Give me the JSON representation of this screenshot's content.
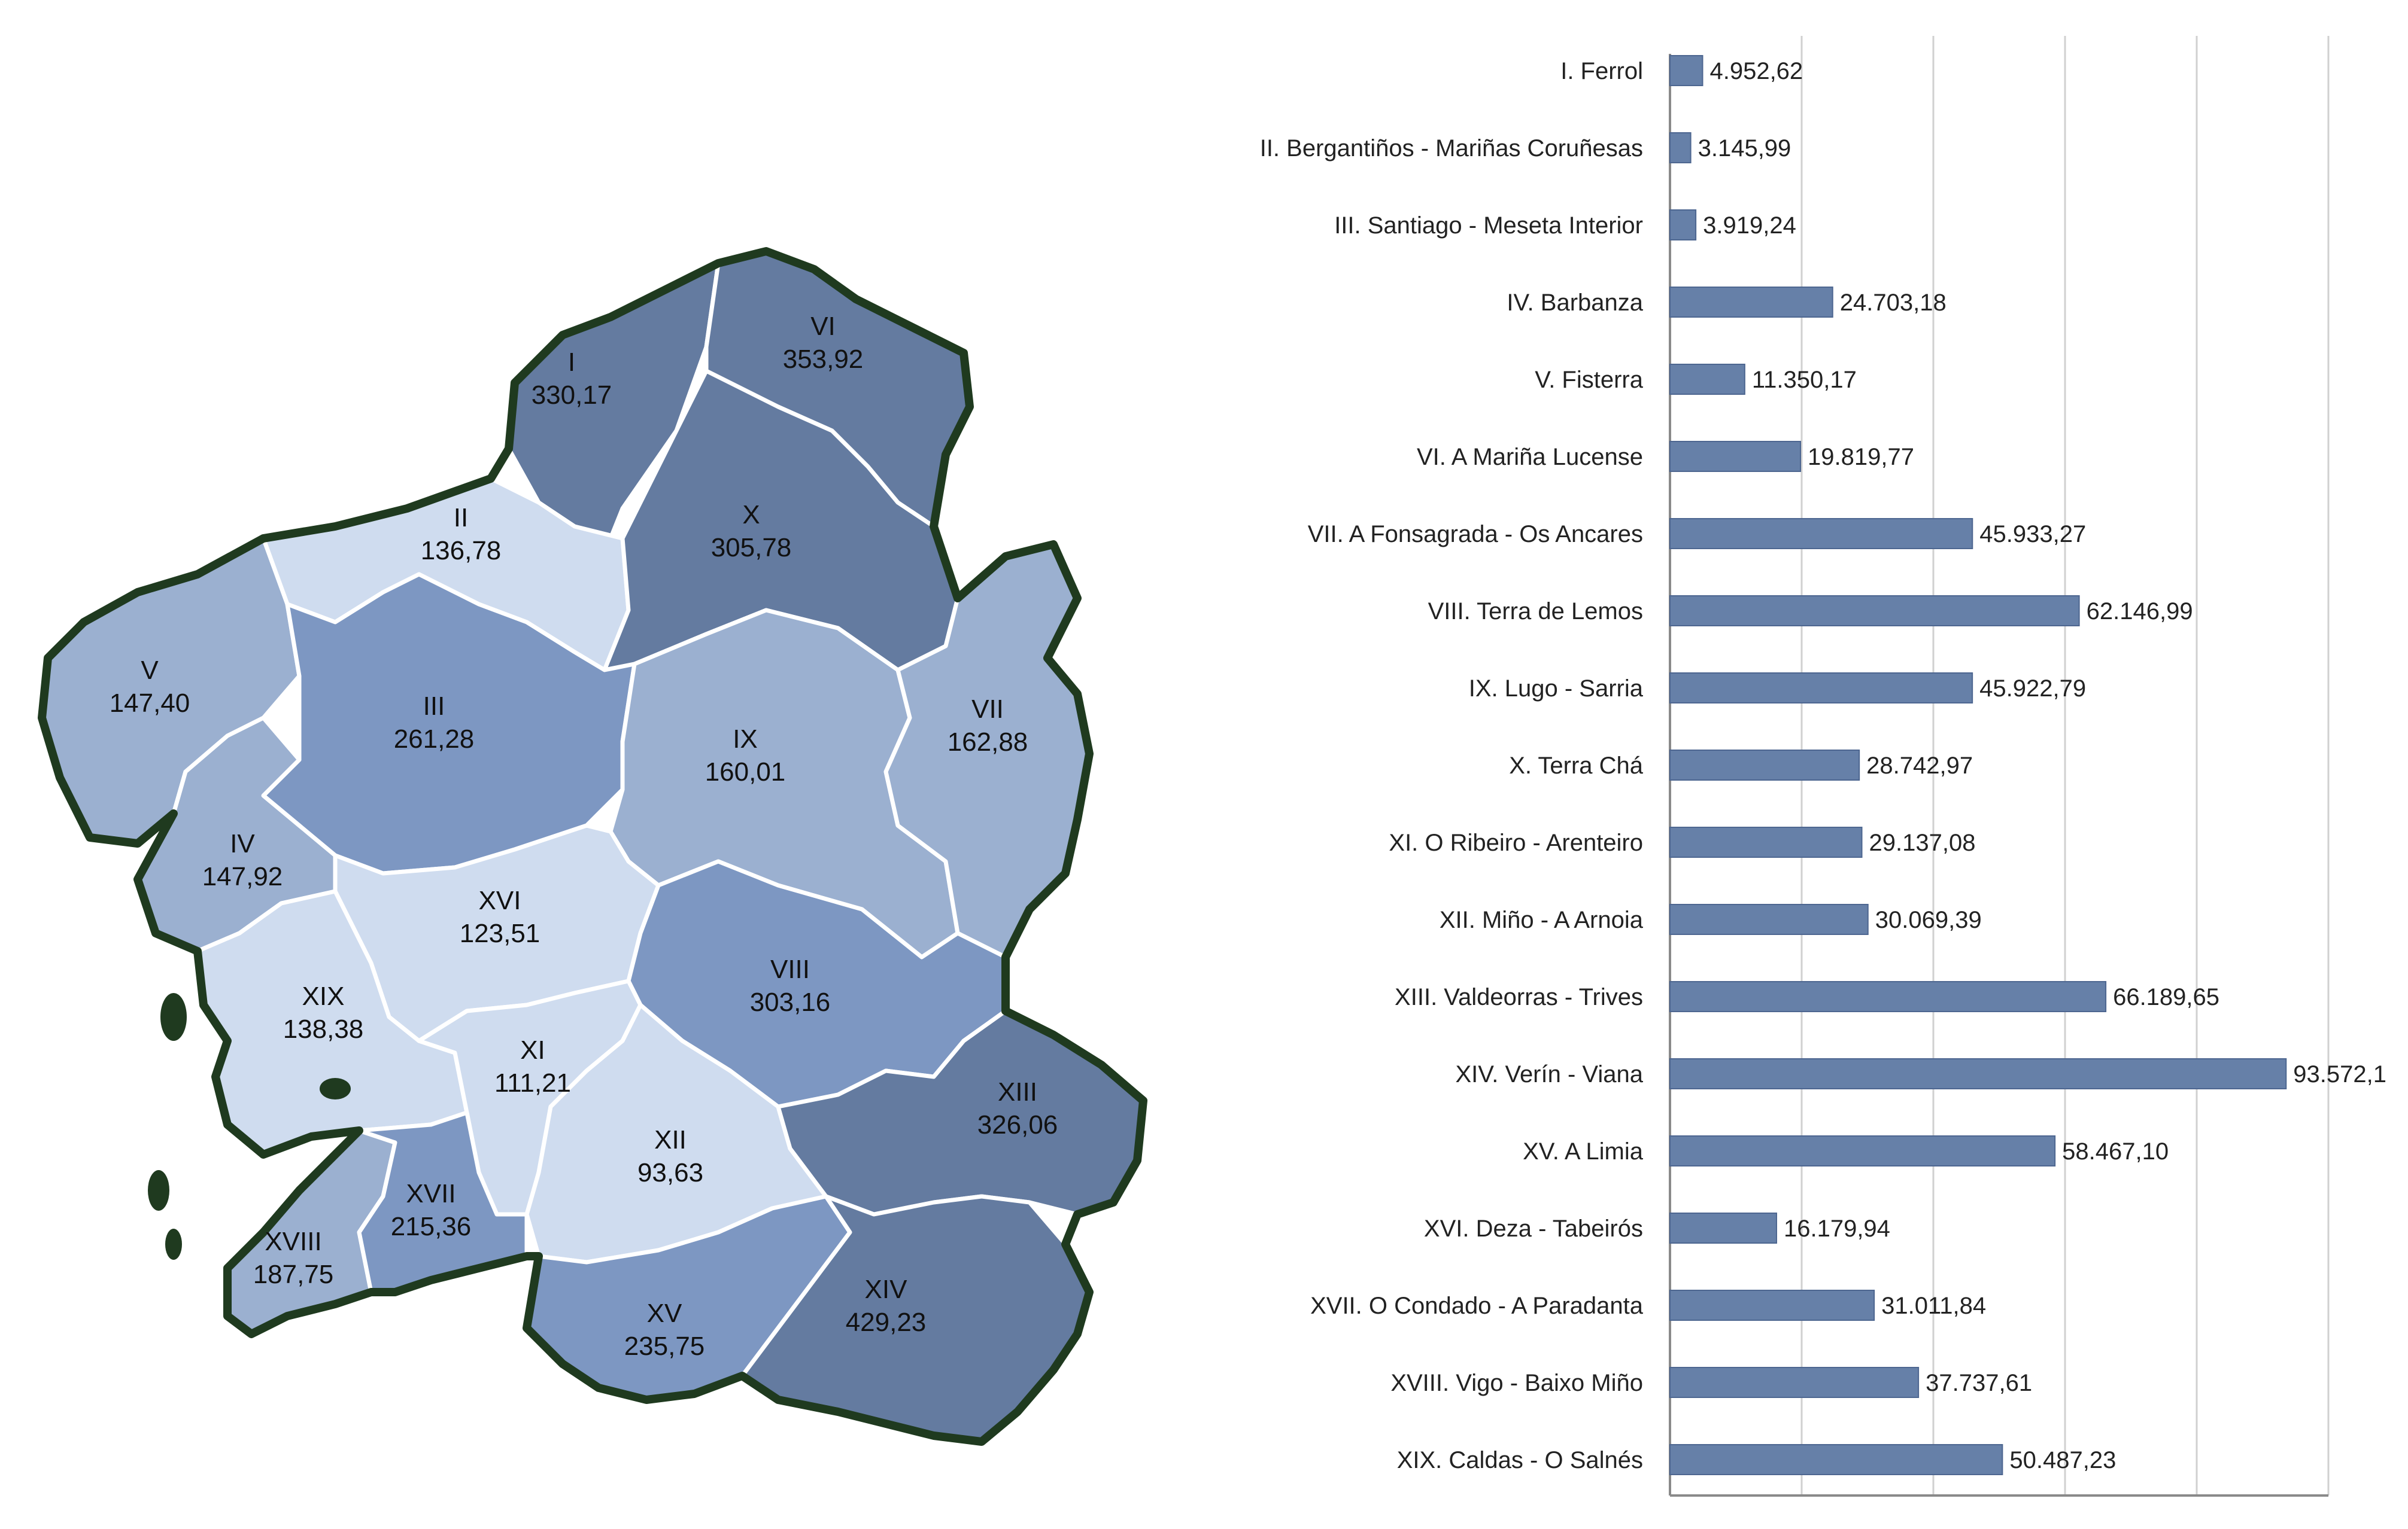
{
  "map": {
    "colors": {
      "dark": "#647ba0",
      "medium": "#7d97c2",
      "light": "#9bb0d0",
      "pale": "#cfdcef",
      "border": "#1f3a1f"
    },
    "regions": [
      {
        "id": "I",
        "value": "330,17",
        "shade": "dark"
      },
      {
        "id": "II",
        "value": "136,78",
        "shade": "pale"
      },
      {
        "id": "III",
        "value": "261,28",
        "shade": "medium"
      },
      {
        "id": "IV",
        "value": "147,92",
        "shade": "light"
      },
      {
        "id": "V",
        "value": "147,40",
        "shade": "light"
      },
      {
        "id": "VI",
        "value": "353,92",
        "shade": "dark"
      },
      {
        "id": "VII",
        "value": "162,88",
        "shade": "light"
      },
      {
        "id": "VIII",
        "value": "303,16",
        "shade": "medium"
      },
      {
        "id": "IX",
        "value": "160,01",
        "shade": "light"
      },
      {
        "id": "X",
        "value": "305,78",
        "shade": "dark"
      },
      {
        "id": "XI",
        "value": "111,21",
        "shade": "pale"
      },
      {
        "id": "XII",
        "value": "93,63",
        "shade": "pale"
      },
      {
        "id": "XIII",
        "value": "326,06",
        "shade": "dark"
      },
      {
        "id": "XIV",
        "value": "429,23",
        "shade": "dark"
      },
      {
        "id": "XV",
        "value": "235,75",
        "shade": "medium"
      },
      {
        "id": "XVI",
        "value": "123,51",
        "shade": "pale"
      },
      {
        "id": "XVII",
        "value": "215,36",
        "shade": "medium"
      },
      {
        "id": "XVIII",
        "value": "187,75",
        "shade": "light"
      },
      {
        "id": "XIX",
        "value": "138,38",
        "shade": "pale"
      }
    ]
  },
  "chart_data": {
    "type": "bar",
    "orientation": "horizontal",
    "title": "",
    "xlabel": "",
    "ylabel": "",
    "xlim": [
      0,
      100000
    ],
    "grid": true,
    "bar_color": "#6680a8",
    "categories": [
      "I. Ferrol",
      "II. Bergantiños - Mariñas Coruñesas",
      "III. Santiago - Meseta Interior",
      "IV. Barbanza",
      "V. Fisterra",
      "VI. A Mariña Lucense",
      "VII. A Fonsagrada - Os Ancares",
      "VIII. Terra de Lemos",
      "IX. Lugo - Sarria",
      "X. Terra Chá",
      "XI. O Ribeiro - Arenteiro",
      "XII. Miño - A Arnoia",
      "XIII. Valdeorras - Trives",
      "XIV. Verín - Viana",
      "XV. A Limia",
      "XVI. Deza - Tabeirós",
      "XVII. O Condado - A Paradanta",
      "XVIII. Vigo - Baixo Miño",
      "XIX. Caldas - O Salnés"
    ],
    "values": [
      4952.62,
      3145.99,
      3919.24,
      24703.18,
      11350.17,
      19819.77,
      45933.27,
      62146.99,
      45922.79,
      28742.97,
      29137.08,
      30069.39,
      66189.65,
      93572.1,
      58467.1,
      16179.94,
      31011.84,
      37737.61,
      50487.23
    ],
    "value_labels": [
      "4.952,62",
      "3.145,99",
      "3.919,24",
      "24.703,18",
      "11.350,17",
      "19.819,77",
      "45.933,27",
      "62.146,99",
      "45.922,79",
      "28.742,97",
      "29.137,08",
      "30.069,39",
      "66.189,65",
      "93.572,1",
      "58.467,10",
      "16.179,94",
      "31.011,84",
      "37.737,61",
      "50.487,23"
    ]
  }
}
